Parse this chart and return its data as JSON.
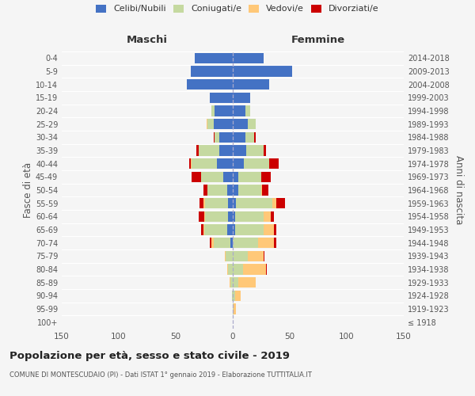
{
  "age_groups": [
    "100+",
    "95-99",
    "90-94",
    "85-89",
    "80-84",
    "75-79",
    "70-74",
    "65-69",
    "60-64",
    "55-59",
    "50-54",
    "45-49",
    "40-44",
    "35-39",
    "30-34",
    "25-29",
    "20-24",
    "15-19",
    "10-14",
    "5-9",
    "0-4"
  ],
  "birth_years": [
    "≤ 1918",
    "1919-1923",
    "1924-1928",
    "1929-1933",
    "1934-1938",
    "1939-1943",
    "1944-1948",
    "1949-1953",
    "1954-1958",
    "1959-1963",
    "1964-1968",
    "1969-1973",
    "1974-1978",
    "1979-1983",
    "1984-1988",
    "1989-1993",
    "1994-1998",
    "1999-2003",
    "2004-2008",
    "2009-2013",
    "2014-2018"
  ],
  "male": {
    "celibi": [
      0,
      0,
      0,
      0,
      0,
      0,
      2,
      5,
      4,
      4,
      5,
      8,
      14,
      12,
      12,
      17,
      16,
      20,
      40,
      37,
      33
    ],
    "coniugati": [
      0,
      0,
      1,
      2,
      4,
      6,
      15,
      20,
      20,
      20,
      17,
      20,
      22,
      18,
      4,
      5,
      3,
      0,
      0,
      0,
      0
    ],
    "vedovi": [
      0,
      0,
      0,
      1,
      1,
      1,
      2,
      1,
      1,
      2,
      0,
      0,
      1,
      0,
      0,
      1,
      0,
      0,
      0,
      0,
      0
    ],
    "divorziati": [
      0,
      0,
      0,
      0,
      0,
      0,
      1,
      2,
      5,
      3,
      4,
      8,
      1,
      2,
      1,
      0,
      0,
      0,
      0,
      0,
      0
    ]
  },
  "female": {
    "nubili": [
      0,
      0,
      0,
      0,
      0,
      0,
      0,
      2,
      2,
      3,
      5,
      5,
      10,
      12,
      11,
      13,
      11,
      15,
      32,
      52,
      27
    ],
    "coniugate": [
      0,
      1,
      2,
      5,
      9,
      13,
      22,
      25,
      25,
      32,
      20,
      20,
      22,
      15,
      8,
      7,
      4,
      0,
      0,
      0,
      0
    ],
    "vedove": [
      0,
      2,
      5,
      15,
      20,
      14,
      14,
      9,
      6,
      3,
      1,
      0,
      0,
      0,
      0,
      0,
      0,
      0,
      0,
      0,
      0
    ],
    "divorziate": [
      0,
      0,
      0,
      0,
      1,
      1,
      2,
      2,
      3,
      8,
      5,
      8,
      8,
      2,
      1,
      0,
      0,
      0,
      0,
      0,
      0
    ]
  },
  "colors": {
    "celibi": "#4472C4",
    "coniugati": "#c5d9a0",
    "vedovi": "#ffc878",
    "divorziati": "#cc0000"
  },
  "title": "Popolazione per età, sesso e stato civile - 2019",
  "subtitle": "COMUNE DI MONTESCUDAIO (PI) - Dati ISTAT 1° gennaio 2019 - Elaborazione TUTTITALIA.IT",
  "ylabel_left": "Fasce di età",
  "ylabel_right": "Anni di nascita",
  "xlabel_left": "Maschi",
  "xlabel_right": "Femmine",
  "xlim": 150,
  "legend_labels": [
    "Celibi/Nubili",
    "Coniugati/e",
    "Vedovi/e",
    "Divorziati/e"
  ],
  "bg_color": "#f5f5f5"
}
